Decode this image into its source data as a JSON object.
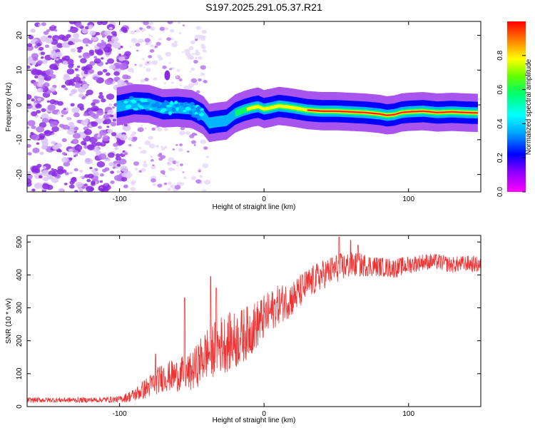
{
  "title": "S197.2025.291.05.37.R21",
  "colors": {
    "snr_line": "#ee3333",
    "colorbar": [
      "#ff00ff",
      "#0000ff",
      "#00ffff",
      "#00ff00",
      "#ffff00",
      "#ff0000"
    ]
  },
  "chart_data": [
    {
      "type": "heatmap",
      "title": "",
      "xlabel": "Height of straight line (km)",
      "ylabel": "Frequency (Hz)",
      "xlim": [
        -164,
        150
      ],
      "ylim": [
        -25,
        24
      ],
      "xticks": [
        -100,
        0,
        100
      ],
      "yticks": [
        -20,
        -10,
        0,
        10,
        20
      ],
      "colorbar": {
        "label": "Normalized spectral amplitude",
        "range": [
          0,
          1
        ],
        "ticks": [
          "0.0",
          "0.2",
          "0.4",
          "0.6",
          "0.8"
        ]
      },
      "ridge": {
        "x": [
          -102,
          -90,
          -80,
          -70,
          -60,
          -50,
          -42,
          -38,
          -32,
          -26,
          -20,
          -14,
          -8,
          -4,
          0,
          5,
          10,
          15,
          20,
          30,
          40,
          50,
          60,
          70,
          80,
          85,
          90,
          95,
          100,
          110,
          120,
          130,
          140,
          148
        ],
        "y": [
          -0.5,
          0.5,
          0.3,
          -1.0,
          -0.8,
          -1.2,
          -3.0,
          -5.2,
          -4.8,
          -4.5,
          -2.5,
          -1.5,
          -0.8,
          -0.5,
          -1.2,
          -0.8,
          -0.3,
          -0.5,
          -0.8,
          -1.5,
          -1.8,
          -1.8,
          -2.0,
          -2.2,
          -2.6,
          -3.0,
          -2.8,
          -2.2,
          -2.0,
          -1.8,
          -2.2,
          -2.0,
          -2.2,
          -2.3
        ]
      }
    },
    {
      "type": "line",
      "title": "",
      "xlabel": "Height of straight line (km)",
      "ylabel": "SNR (10 * v/v)",
      "xlim": [
        -164,
        150
      ],
      "ylim": [
        0,
        520
      ],
      "xticks": [
        -100,
        0,
        100
      ],
      "yticks": [
        0,
        100,
        200,
        300,
        400,
        500
      ],
      "envelope": {
        "x": [
          -164,
          -120,
          -100,
          -90,
          -80,
          -70,
          -60,
          -50,
          -40,
          -30,
          -20,
          -10,
          0,
          10,
          20,
          30,
          40,
          50,
          60,
          70,
          80,
          90,
          100,
          110,
          120,
          130,
          140,
          150
        ],
        "mean": [
          20,
          20,
          22,
          35,
          60,
          90,
          95,
          105,
          160,
          190,
          200,
          230,
          270,
          310,
          330,
          370,
          400,
          420,
          430,
          430,
          425,
          420,
          430,
          440,
          440,
          430,
          435,
          430
        ],
        "spread": [
          8,
          8,
          10,
          20,
          35,
          45,
          50,
          60,
          80,
          90,
          90,
          80,
          70,
          60,
          55,
          50,
          45,
          45,
          40,
          35,
          30,
          30,
          28,
          25,
          25,
          25,
          25,
          25
        ]
      },
      "spikes": [
        {
          "x": -37,
          "y": 395
        },
        {
          "x": -33,
          "y": 360
        },
        {
          "x": -55,
          "y": 330
        },
        {
          "x": 52,
          "y": 515
        },
        {
          "x": 60,
          "y": 505
        },
        {
          "x": 65,
          "y": 490
        },
        {
          "x": -75,
          "y": 160
        }
      ]
    }
  ]
}
